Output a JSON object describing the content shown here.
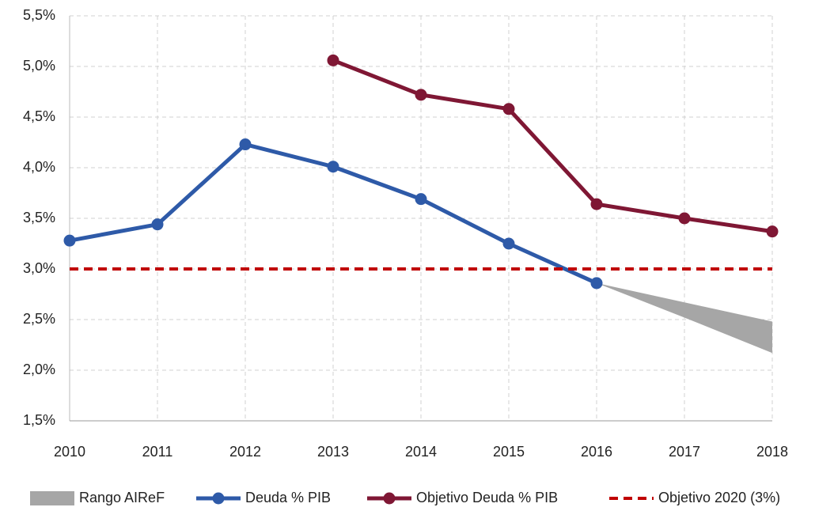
{
  "chart_data": {
    "type": "line",
    "categories": [
      "2010",
      "2011",
      "2012",
      "2013",
      "2014",
      "2015",
      "2016",
      "2017",
      "2018"
    ],
    "ylim": [
      1.5,
      5.5
    ],
    "yticks": [
      {
        "value": 1.5,
        "label": "1,5%"
      },
      {
        "value": 2.0,
        "label": "2,0%"
      },
      {
        "value": 2.5,
        "label": "2,5%"
      },
      {
        "value": 3.0,
        "label": "3,0%"
      },
      {
        "value": 3.5,
        "label": "3,5%"
      },
      {
        "value": 4.0,
        "label": "4,0%"
      },
      {
        "value": 4.5,
        "label": "4,5%"
      },
      {
        "value": 5.0,
        "label": "5,0%"
      },
      {
        "value": 5.5,
        "label": "5,5%"
      }
    ],
    "grid": true,
    "legend": "bottom",
    "series": [
      {
        "name": "Rango AIReF",
        "kind": "band",
        "color": "#a6a6a6",
        "low": [
          null,
          null,
          null,
          null,
          null,
          null,
          2.86,
          2.52,
          2.17
        ],
        "high": [
          null,
          null,
          null,
          null,
          null,
          null,
          2.86,
          2.67,
          2.48
        ]
      },
      {
        "name": "Deuda % PIB",
        "kind": "line",
        "color": "#2e5aa8",
        "marker": true,
        "values": [
          3.28,
          3.44,
          4.23,
          4.01,
          3.69,
          3.25,
          2.86,
          null,
          null
        ]
      },
      {
        "name": "Objetivo Deuda % PIB",
        "kind": "line",
        "color": "#7f1734",
        "marker": true,
        "values": [
          null,
          null,
          null,
          5.06,
          4.72,
          4.58,
          3.64,
          3.5,
          3.37
        ]
      },
      {
        "name": "Objetivo 2020 (3%)",
        "kind": "line",
        "color": "#c00000",
        "dashed": true,
        "values": [
          3.0,
          3.0,
          3.0,
          3.0,
          3.0,
          3.0,
          3.0,
          3.0,
          3.0
        ]
      }
    ]
  }
}
